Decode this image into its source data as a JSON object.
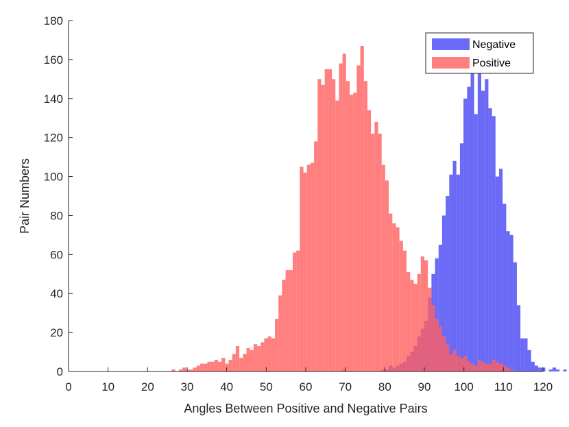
{
  "chart_data": {
    "type": "histogram",
    "title": "",
    "xlabel": "Angles Between Positive and Negative Pairs",
    "ylabel": "Pair Numbers",
    "xlim": [
      0,
      120
    ],
    "ylim": [
      0,
      180
    ],
    "xticks": [
      "0",
      "10",
      "20",
      "30",
      "40",
      "50",
      "60",
      "70",
      "80",
      "90",
      "100",
      "110",
      "120"
    ],
    "yticks": [
      "0",
      "20",
      "40",
      "60",
      "80",
      "100",
      "120",
      "140",
      "160",
      "180"
    ],
    "grid": false,
    "legend_position": "top-right",
    "bin_width": 0.9,
    "series": [
      {
        "name": "Negative",
        "color": "#4545f5",
        "bin_start": 69.3,
        "values": [
          1,
          0,
          0,
          0,
          0,
          0,
          0,
          0,
          0,
          0,
          0,
          1,
          1,
          3,
          2,
          3,
          4,
          5,
          8,
          10,
          13,
          18,
          22,
          26,
          38,
          50,
          58,
          65,
          80,
          90,
          101,
          108,
          101,
          117,
          140,
          146,
          154,
          132,
          158,
          144,
          150,
          135,
          131,
          100,
          104,
          86,
          72,
          70,
          56,
          34,
          17,
          17,
          11,
          5,
          3,
          2,
          2,
          0,
          1,
          2,
          1,
          0,
          1
        ]
      },
      {
        "name": "Positive",
        "color": "#ff5f5f",
        "bin_start": 26.1,
        "values": [
          1,
          0,
          1,
          2,
          1,
          1,
          2,
          3,
          4,
          4,
          5,
          5,
          6,
          5,
          7,
          4,
          6,
          9,
          13,
          7,
          9,
          12,
          11,
          14,
          13,
          15,
          17,
          18,
          17,
          27,
          39,
          47,
          52,
          52,
          61,
          62,
          105,
          102,
          106,
          107,
          118,
          150,
          147,
          155,
          155,
          150,
          139,
          158,
          163,
          149,
          142,
          143,
          157,
          167,
          149,
          134,
          122,
          128,
          122,
          106,
          98,
          81,
          76,
          74,
          67,
          62,
          51,
          47,
          45,
          50,
          59,
          57,
          43,
          34,
          27,
          23,
          18,
          14,
          9,
          11,
          8,
          7,
          8,
          5,
          4,
          3,
          6,
          5,
          4,
          4,
          6,
          5,
          4,
          3,
          2,
          1
        ]
      }
    ]
  }
}
